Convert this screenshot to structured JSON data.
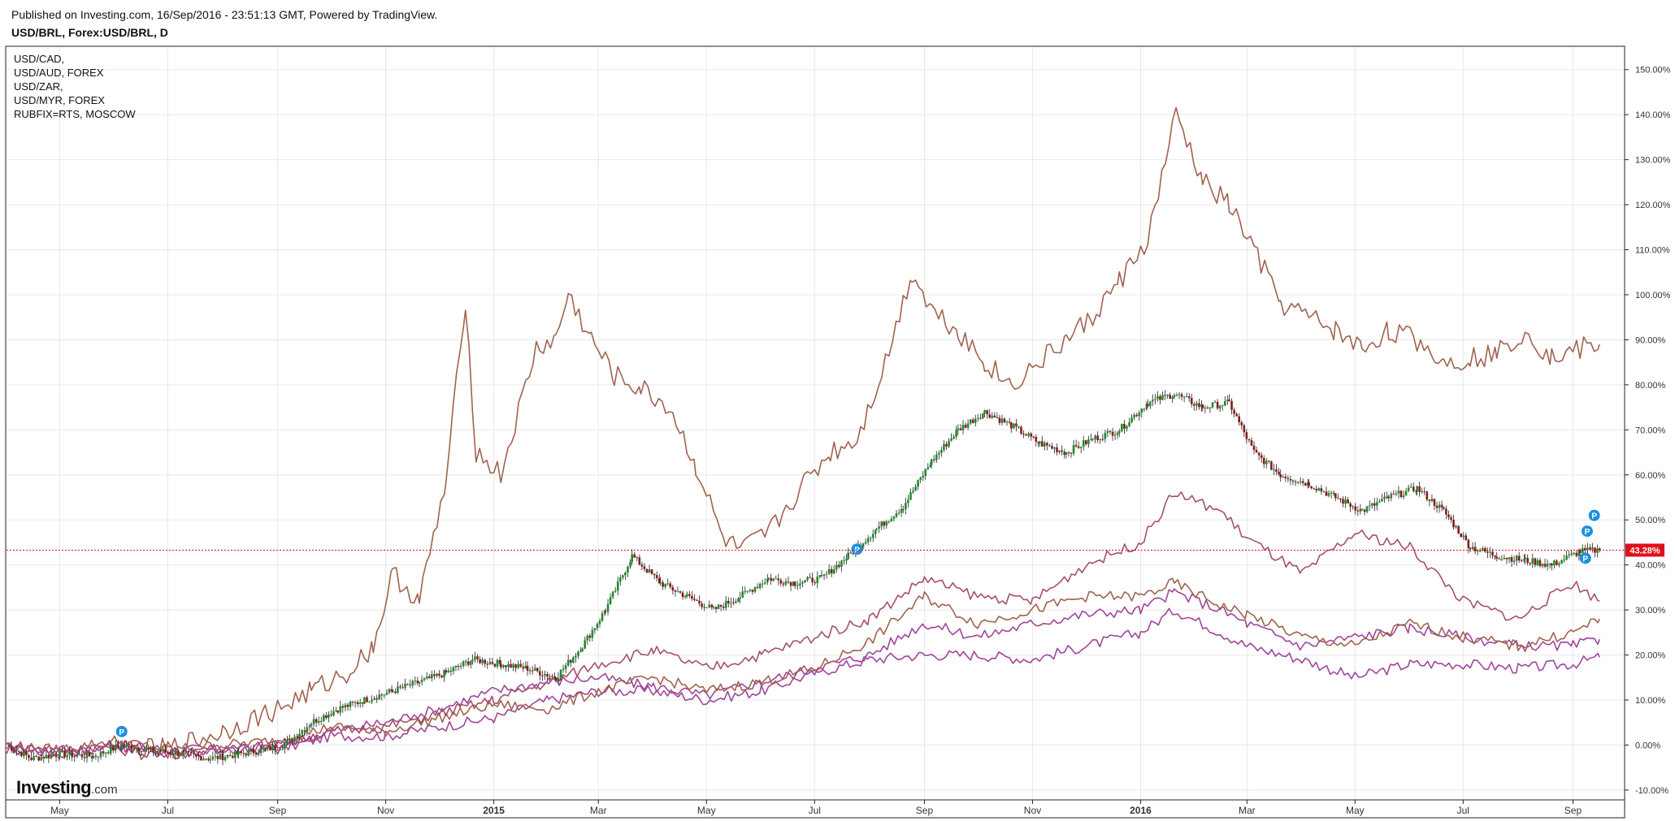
{
  "header": {
    "published_line": "Published on Investing.com, 16/Sep/2016 - 23:51:13 GMT, Powered by TradingView.",
    "symbol_title": "USD/BRL, Forex:USD/BRL, D"
  },
  "legend": {
    "items": [
      "USD/CAD,",
      "USD/AUD, FOREX",
      "USD/ZAR,",
      "USD/MYR, FOREX",
      "RUBFIX=RTS, MOSCOW"
    ]
  },
  "logo": {
    "brand": "Investing",
    "domain": ".com"
  },
  "colors": {
    "up_candle": "#1e8c2a",
    "down_candle": "#8b1a1a",
    "brown_line": "#a0634f",
    "magenta_line": "#a0459b",
    "rose_line": "#a4506f",
    "price_line": "#e0101a",
    "marker": "#1e90e0"
  },
  "chart_data": {
    "type": "line",
    "y_unit": "percent",
    "ylim": [
      -12,
      155
    ],
    "y_ticks": [
      -10,
      0,
      10,
      20,
      30,
      40,
      50,
      60,
      70,
      80,
      90,
      100,
      110,
      120,
      130,
      140,
      150
    ],
    "y_tick_labels": [
      "-10.00%",
      "0.00%",
      "10.00%",
      "20.00%",
      "30.00%",
      "40.00%",
      "50.00%",
      "60.00%",
      "70.00%",
      "80.00%",
      "90.00%",
      "100.00%",
      "110.00%",
      "120.00%",
      "130.00%",
      "140.00%",
      "150.00%"
    ],
    "x_range": [
      "2014-04-01",
      "2016-09-16"
    ],
    "x_ticks": [
      {
        "label": "May",
        "date": "2014-05-01"
      },
      {
        "label": "Jul",
        "date": "2014-07-01"
      },
      {
        "label": "Sep",
        "date": "2014-09-01"
      },
      {
        "label": "Nov",
        "date": "2014-11-01"
      },
      {
        "label": "2015",
        "date": "2015-01-01"
      },
      {
        "label": "Mar",
        "date": "2015-03-01"
      },
      {
        "label": "May",
        "date": "2015-05-01"
      },
      {
        "label": "Jul",
        "date": "2015-07-01"
      },
      {
        "label": "Sep",
        "date": "2015-09-01"
      },
      {
        "label": "Nov",
        "date": "2015-11-01"
      },
      {
        "label": "2016",
        "date": "2016-01-01"
      },
      {
        "label": "Mar",
        "date": "2016-03-01"
      },
      {
        "label": "May",
        "date": "2016-05-01"
      },
      {
        "label": "Jul",
        "date": "2016-07-01"
      },
      {
        "label": "Sep",
        "date": "2016-09-01"
      }
    ],
    "grid": true,
    "current_value": 43.28,
    "current_label": "43.28%",
    "main_series": {
      "name": "USD/BRL",
      "style": "candles",
      "points": [
        [
          "2014-04-01",
          0
        ],
        [
          "2014-04-15",
          -3
        ],
        [
          "2014-05-01",
          -2
        ],
        [
          "2014-05-20",
          -2.5
        ],
        [
          "2014-06-05",
          0
        ],
        [
          "2014-06-20",
          -1
        ],
        [
          "2014-07-10",
          -2
        ],
        [
          "2014-07-25",
          -3
        ],
        [
          "2014-08-10",
          -2
        ],
        [
          "2014-08-25",
          -1
        ],
        [
          "2014-09-05",
          0
        ],
        [
          "2014-09-20",
          5
        ],
        [
          "2014-10-05",
          8
        ],
        [
          "2014-10-20",
          10
        ],
        [
          "2014-11-05",
          12
        ],
        [
          "2014-11-20",
          14
        ],
        [
          "2014-12-05",
          16
        ],
        [
          "2014-12-20",
          19
        ],
        [
          "2015-01-05",
          18
        ],
        [
          "2015-01-20",
          17
        ],
        [
          "2015-02-05",
          15
        ],
        [
          "2015-02-20",
          22
        ],
        [
          "2015-03-05",
          30
        ],
        [
          "2015-03-20",
          42
        ],
        [
          "2015-04-05",
          36
        ],
        [
          "2015-04-20",
          33
        ],
        [
          "2015-05-05",
          30
        ],
        [
          "2015-05-20",
          33
        ],
        [
          "2015-06-05",
          37
        ],
        [
          "2015-06-20",
          36
        ],
        [
          "2015-07-05",
          37
        ],
        [
          "2015-07-20",
          42
        ],
        [
          "2015-08-05",
          48
        ],
        [
          "2015-08-20",
          53
        ],
        [
          "2015-09-05",
          63
        ],
        [
          "2015-09-20",
          70
        ],
        [
          "2015-10-05",
          74
        ],
        [
          "2015-10-20",
          71
        ],
        [
          "2015-11-05",
          67
        ],
        [
          "2015-11-20",
          65
        ],
        [
          "2015-12-05",
          68
        ],
        [
          "2015-12-20",
          70
        ],
        [
          "2016-01-05",
          76
        ],
        [
          "2016-01-20",
          78
        ],
        [
          "2016-02-05",
          75
        ],
        [
          "2016-02-20",
          76
        ],
        [
          "2016-03-05",
          65
        ],
        [
          "2016-03-20",
          60
        ],
        [
          "2016-04-05",
          58
        ],
        [
          "2016-04-20",
          55
        ],
        [
          "2016-05-05",
          52
        ],
        [
          "2016-05-20",
          55
        ],
        [
          "2016-06-05",
          57
        ],
        [
          "2016-06-20",
          52
        ],
        [
          "2016-07-05",
          44
        ],
        [
          "2016-07-20",
          42
        ],
        [
          "2016-08-05",
          41
        ],
        [
          "2016-08-20",
          40
        ],
        [
          "2016-09-05",
          43
        ],
        [
          "2016-09-16",
          43.28
        ]
      ]
    },
    "compare_series": [
      {
        "name": "USD/CAD",
        "color_key": "magenta_line",
        "points": [
          [
            "2014-04-01",
            -0.5
          ],
          [
            "2014-05-01",
            -2
          ],
          [
            "2014-06-01",
            0
          ],
          [
            "2014-07-01",
            -1
          ],
          [
            "2014-08-01",
            -1
          ],
          [
            "2014-09-01",
            -1
          ],
          [
            "2014-10-01",
            2
          ],
          [
            "2014-11-01",
            2
          ],
          [
            "2014-12-01",
            4
          ],
          [
            "2015-01-01",
            6
          ],
          [
            "2015-02-01",
            10
          ],
          [
            "2015-03-01",
            12
          ],
          [
            "2015-04-01",
            12
          ],
          [
            "2015-05-01",
            10
          ],
          [
            "2015-06-01",
            12
          ],
          [
            "2015-07-01",
            16
          ],
          [
            "2015-08-01",
            19
          ],
          [
            "2015-09-01",
            20
          ],
          [
            "2015-10-01",
            20
          ],
          [
            "2015-11-01",
            19
          ],
          [
            "2015-12-01",
            22
          ],
          [
            "2016-01-01",
            25
          ],
          [
            "2016-01-20",
            30
          ],
          [
            "2016-02-15",
            25
          ],
          [
            "2016-03-01",
            22
          ],
          [
            "2016-04-01",
            19
          ],
          [
            "2016-05-01",
            15
          ],
          [
            "2016-06-01",
            18
          ],
          [
            "2016-07-01",
            18
          ],
          [
            "2016-08-01",
            17
          ],
          [
            "2016-09-01",
            18
          ],
          [
            "2016-09-16",
            19.5
          ]
        ]
      },
      {
        "name": "USD/AUD",
        "color_key": "magenta_line",
        "points": [
          [
            "2014-04-01",
            -1
          ],
          [
            "2014-05-01",
            -1
          ],
          [
            "2014-06-01",
            0
          ],
          [
            "2014-07-01",
            -2
          ],
          [
            "2014-08-01",
            -1
          ],
          [
            "2014-09-01",
            0
          ],
          [
            "2014-10-01",
            3
          ],
          [
            "2014-11-01",
            5
          ],
          [
            "2014-12-01",
            8
          ],
          [
            "2015-01-01",
            12
          ],
          [
            "2015-02-01",
            14
          ],
          [
            "2015-03-01",
            15
          ],
          [
            "2015-04-01",
            13
          ],
          [
            "2015-05-01",
            11
          ],
          [
            "2015-06-01",
            14
          ],
          [
            "2015-07-01",
            17
          ],
          [
            "2015-08-01",
            20
          ],
          [
            "2015-09-01",
            27
          ],
          [
            "2015-10-01",
            24
          ],
          [
            "2015-11-01",
            27
          ],
          [
            "2015-12-01",
            29
          ],
          [
            "2016-01-01",
            30
          ],
          [
            "2016-01-20",
            34
          ],
          [
            "2016-02-15",
            30
          ],
          [
            "2016-03-01",
            27
          ],
          [
            "2016-04-01",
            22
          ],
          [
            "2016-05-01",
            24
          ],
          [
            "2016-06-01",
            26
          ],
          [
            "2016-07-01",
            24
          ],
          [
            "2016-08-01",
            22
          ],
          [
            "2016-09-01",
            22
          ],
          [
            "2016-09-16",
            23.5
          ]
        ]
      },
      {
        "name": "USD/ZAR",
        "color_key": "brown_line",
        "points": [
          [
            "2014-04-01",
            -0.5
          ],
          [
            "2014-05-01",
            -1
          ],
          [
            "2014-06-01",
            1
          ],
          [
            "2014-07-01",
            -1
          ],
          [
            "2014-08-01",
            0
          ],
          [
            "2014-09-01",
            1
          ],
          [
            "2014-10-01",
            4
          ],
          [
            "2014-11-01",
            3
          ],
          [
            "2014-12-01",
            6
          ],
          [
            "2015-01-01",
            9
          ],
          [
            "2015-02-01",
            8
          ],
          [
            "2015-03-01",
            12
          ],
          [
            "2015-04-01",
            15
          ],
          [
            "2015-05-01",
            12
          ],
          [
            "2015-06-01",
            14
          ],
          [
            "2015-07-01",
            17
          ],
          [
            "2015-08-01",
            23
          ],
          [
            "2015-09-01",
            33
          ],
          [
            "2015-10-01",
            27
          ],
          [
            "2015-11-01",
            30
          ],
          [
            "2015-12-01",
            33
          ],
          [
            "2016-01-01",
            33
          ],
          [
            "2016-01-20",
            36
          ],
          [
            "2016-02-15",
            31
          ],
          [
            "2016-03-01",
            29
          ],
          [
            "2016-04-01",
            24
          ],
          [
            "2016-05-01",
            22
          ],
          [
            "2016-06-01",
            27
          ],
          [
            "2016-07-01",
            24
          ],
          [
            "2016-08-01",
            22
          ],
          [
            "2016-09-01",
            25
          ],
          [
            "2016-09-16",
            28
          ]
        ]
      },
      {
        "name": "USD/MYR",
        "color_key": "rose_line",
        "points": [
          [
            "2014-04-01",
            0
          ],
          [
            "2014-05-01",
            -1
          ],
          [
            "2014-06-01",
            -1
          ],
          [
            "2014-07-01",
            -2
          ],
          [
            "2014-08-01",
            -1
          ],
          [
            "2014-09-01",
            0
          ],
          [
            "2014-10-01",
            3
          ],
          [
            "2014-11-01",
            4
          ],
          [
            "2014-12-01",
            7
          ],
          [
            "2015-01-01",
            10
          ],
          [
            "2015-02-01",
            14
          ],
          [
            "2015-03-01",
            18
          ],
          [
            "2015-04-01",
            21
          ],
          [
            "2015-05-01",
            17
          ],
          [
            "2015-06-01",
            20
          ],
          [
            "2015-07-01",
            24
          ],
          [
            "2015-08-01",
            28
          ],
          [
            "2015-09-01",
            37
          ],
          [
            "2015-10-01",
            33
          ],
          [
            "2015-11-01",
            32
          ],
          [
            "2015-12-01",
            40
          ],
          [
            "2016-01-01",
            45
          ],
          [
            "2016-01-20",
            56
          ],
          [
            "2016-02-15",
            52
          ],
          [
            "2016-03-01",
            46
          ],
          [
            "2016-04-01",
            38
          ],
          [
            "2016-05-01",
            47
          ],
          [
            "2016-06-01",
            44
          ],
          [
            "2016-07-01",
            32
          ],
          [
            "2016-08-01",
            28
          ],
          [
            "2016-09-01",
            36
          ],
          [
            "2016-09-16",
            32
          ]
        ]
      },
      {
        "name": "RUBFIX=RTS",
        "color_key": "brown_line",
        "points": [
          [
            "2014-06-10",
            -1
          ],
          [
            "2014-07-01",
            -1
          ],
          [
            "2014-08-01",
            3
          ],
          [
            "2014-09-01",
            8
          ],
          [
            "2014-09-20",
            12
          ],
          [
            "2014-10-10",
            16
          ],
          [
            "2014-10-25",
            22
          ],
          [
            "2014-11-05",
            38
          ],
          [
            "2014-11-20",
            32
          ],
          [
            "2014-12-05",
            58
          ],
          [
            "2014-12-16",
            99
          ],
          [
            "2014-12-22",
            65
          ],
          [
            "2015-01-05",
            60
          ],
          [
            "2015-01-25",
            88
          ],
          [
            "2015-02-05",
            90
          ],
          [
            "2015-02-12",
            100
          ],
          [
            "2015-02-25",
            90
          ],
          [
            "2015-03-10",
            82
          ],
          [
            "2015-03-25",
            79
          ],
          [
            "2015-04-10",
            75
          ],
          [
            "2015-04-25",
            62
          ],
          [
            "2015-05-10",
            46
          ],
          [
            "2015-05-20",
            43
          ],
          [
            "2015-06-05",
            47
          ],
          [
            "2015-06-25",
            58
          ],
          [
            "2015-07-10",
            65
          ],
          [
            "2015-07-25",
            68
          ],
          [
            "2015-08-10",
            85
          ],
          [
            "2015-08-25",
            105
          ],
          [
            "2015-09-05",
            97
          ],
          [
            "2015-09-20",
            92
          ],
          [
            "2015-10-05",
            85
          ],
          [
            "2015-10-20",
            80
          ],
          [
            "2015-11-05",
            85
          ],
          [
            "2015-11-20",
            90
          ],
          [
            "2015-12-05",
            95
          ],
          [
            "2015-12-20",
            103
          ],
          [
            "2016-01-05",
            112
          ],
          [
            "2016-01-21",
            140
          ],
          [
            "2016-02-05",
            125
          ],
          [
            "2016-02-20",
            120
          ],
          [
            "2016-03-05",
            110
          ],
          [
            "2016-03-20",
            98
          ],
          [
            "2016-04-05",
            95
          ],
          [
            "2016-04-20",
            92
          ],
          [
            "2016-05-05",
            88
          ],
          [
            "2016-05-20",
            92
          ],
          [
            "2016-06-05",
            90
          ],
          [
            "2016-06-20",
            85
          ],
          [
            "2016-07-05",
            86
          ],
          [
            "2016-07-20",
            87
          ],
          [
            "2016-08-05",
            92
          ],
          [
            "2016-08-20",
            86
          ],
          [
            "2016-09-05",
            88
          ],
          [
            "2016-09-16",
            89
          ]
        ]
      }
    ]
  }
}
